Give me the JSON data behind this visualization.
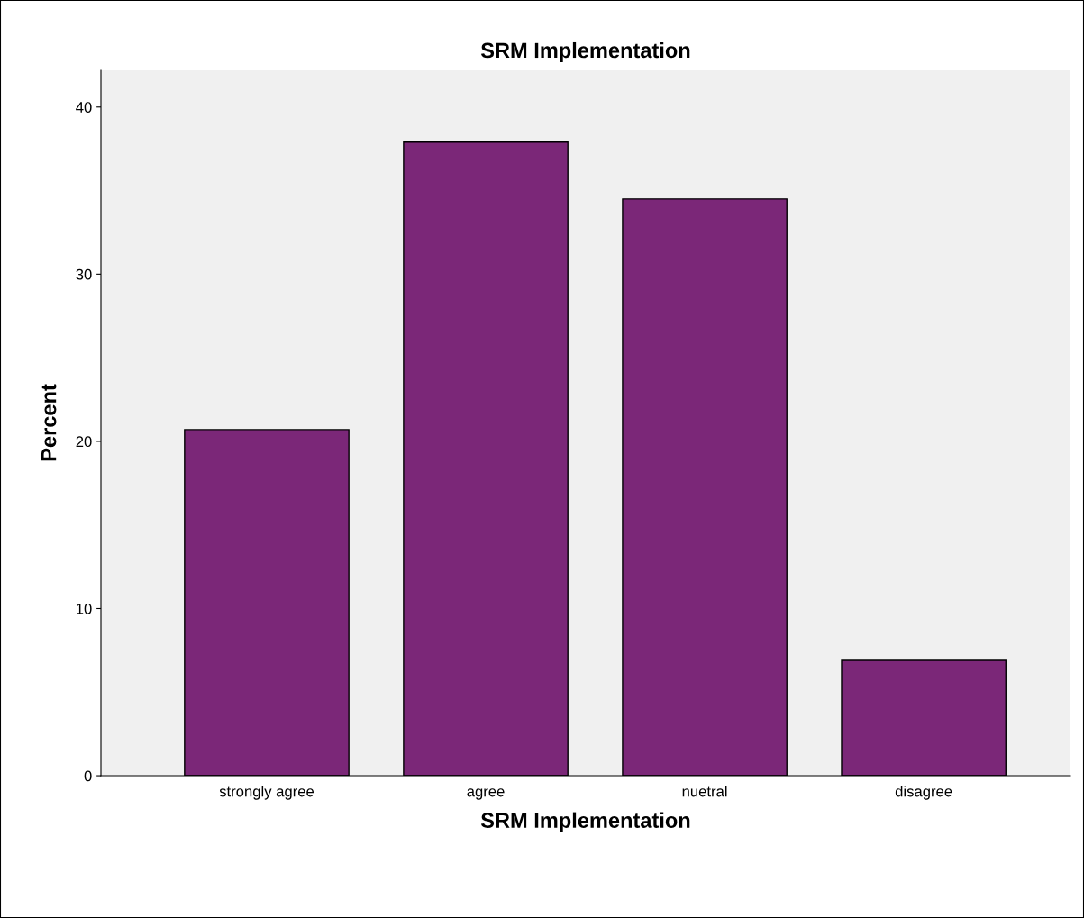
{
  "chart_data": {
    "type": "bar",
    "title": "SRM Implementation",
    "xlabel": "SRM Implementation",
    "ylabel": "Percent",
    "categories": [
      "strongly agree",
      "agree",
      "nuetral",
      "disagree"
    ],
    "values": [
      20.7,
      37.9,
      34.5,
      6.9
    ],
    "color": "#7b2778",
    "ylim": [
      0,
      42.2
    ],
    "yticks": [
      0,
      10,
      20,
      30,
      40
    ],
    "grid": false,
    "legend": false
  }
}
